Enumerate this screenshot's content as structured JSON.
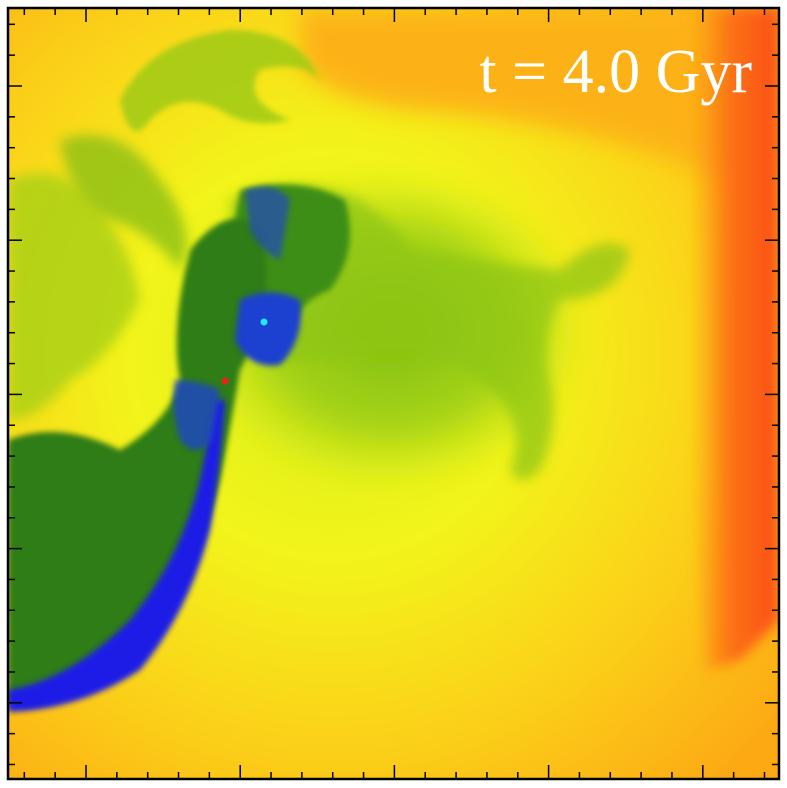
{
  "label": "t = 4.0 Gyr"
}
